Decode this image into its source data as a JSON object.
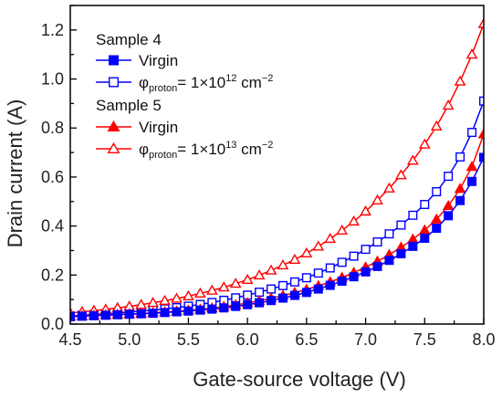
{
  "chart_data": {
    "type": "line",
    "xlabel": "Gate-source voltage (V)",
    "ylabel": "Drain current (A)",
    "xlim": [
      4.5,
      8.0
    ],
    "ylim": [
      0.0,
      1.3
    ],
    "xticks": [
      "4.5",
      "5.0",
      "5.5",
      "6.0",
      "6.5",
      "7.0",
      "7.5",
      "8.0"
    ],
    "yticks": [
      "0.0",
      "0.2",
      "0.4",
      "0.6",
      "0.8",
      "1.0",
      "1.2"
    ],
    "grid": false,
    "legend_placement": "top-left",
    "x": [
      4.5,
      4.6,
      4.7,
      4.8,
      4.9,
      5.0,
      5.1,
      5.2,
      5.3,
      5.4,
      5.5,
      5.6,
      5.7,
      5.8,
      5.9,
      6.0,
      6.1,
      6.2,
      6.3,
      6.4,
      6.5,
      6.6,
      6.7,
      6.8,
      6.9,
      7.0,
      7.1,
      7.2,
      7.3,
      7.4,
      7.5,
      7.6,
      7.7,
      7.8,
      7.9,
      8.0
    ],
    "groups": [
      {
        "label": "Sample 4",
        "series": [
          {
            "name": "Virgin",
            "color": "#0000ff",
            "marker": "square-filled",
            "values": [
              0.03,
              0.032,
              0.034,
              0.036,
              0.038,
              0.04,
              0.042,
              0.044,
              0.047,
              0.05,
              0.053,
              0.057,
              0.061,
              0.066,
              0.072,
              0.079,
              0.087,
              0.096,
              0.106,
              0.117,
              0.129,
              0.143,
              0.158,
              0.175,
              0.193,
              0.213,
              0.235,
              0.26,
              0.287,
              0.317,
              0.35,
              0.391,
              0.442,
              0.504,
              0.582,
              0.68
            ]
          },
          {
            "name": "φproton= 1×10¹² cm⁻²",
            "name_parts": {
              "phi": "φ",
              "sub": "proton",
              "mid": "= 1×10",
              "sup1": "12",
              "unit": " cm",
              "sup2": "−2"
            },
            "color": "#0000ff",
            "marker": "square-open",
            "values": [
              0.033,
              0.036,
              0.039,
              0.042,
              0.045,
              0.049,
              0.053,
              0.057,
              0.062,
              0.067,
              0.073,
              0.08,
              0.088,
              0.097,
              0.107,
              0.118,
              0.13,
              0.143,
              0.157,
              0.172,
              0.189,
              0.208,
              0.229,
              0.252,
              0.277,
              0.305,
              0.335,
              0.368,
              0.404,
              0.444,
              0.488,
              0.54,
              0.603,
              0.682,
              0.782,
              0.91
            ]
          }
        ]
      },
      {
        "label": "Sample 5",
        "series": [
          {
            "name": "Virgin",
            "color": "#ff0000",
            "marker": "triangle-filled",
            "values": [
              0.031,
              0.033,
              0.035,
              0.037,
              0.039,
              0.041,
              0.043,
              0.046,
              0.049,
              0.052,
              0.056,
              0.06,
              0.065,
              0.071,
              0.078,
              0.086,
              0.095,
              0.105,
              0.116,
              0.128,
              0.141,
              0.156,
              0.172,
              0.19,
              0.21,
              0.232,
              0.256,
              0.283,
              0.313,
              0.346,
              0.383,
              0.427,
              0.482,
              0.552,
              0.642,
              0.775
            ]
          },
          {
            "name": "φproton= 1×10¹³ cm⁻²",
            "name_parts": {
              "phi": "φ",
              "sub": "proton",
              "mid": "= 1×10",
              "sup1": "13",
              "unit": " cm",
              "sup2": "−2"
            },
            "color": "#ff0000",
            "marker": "triangle-open",
            "values": [
              0.045,
              0.05,
              0.055,
              0.06,
              0.066,
              0.072,
              0.079,
              0.087,
              0.095,
              0.104,
              0.114,
              0.125,
              0.137,
              0.15,
              0.165,
              0.181,
              0.199,
              0.219,
              0.24,
              0.263,
              0.289,
              0.317,
              0.348,
              0.382,
              0.419,
              0.46,
              0.505,
              0.554,
              0.608,
              0.667,
              0.733,
              0.807,
              0.892,
              0.99,
              1.1,
              1.225
            ]
          }
        ]
      }
    ]
  }
}
